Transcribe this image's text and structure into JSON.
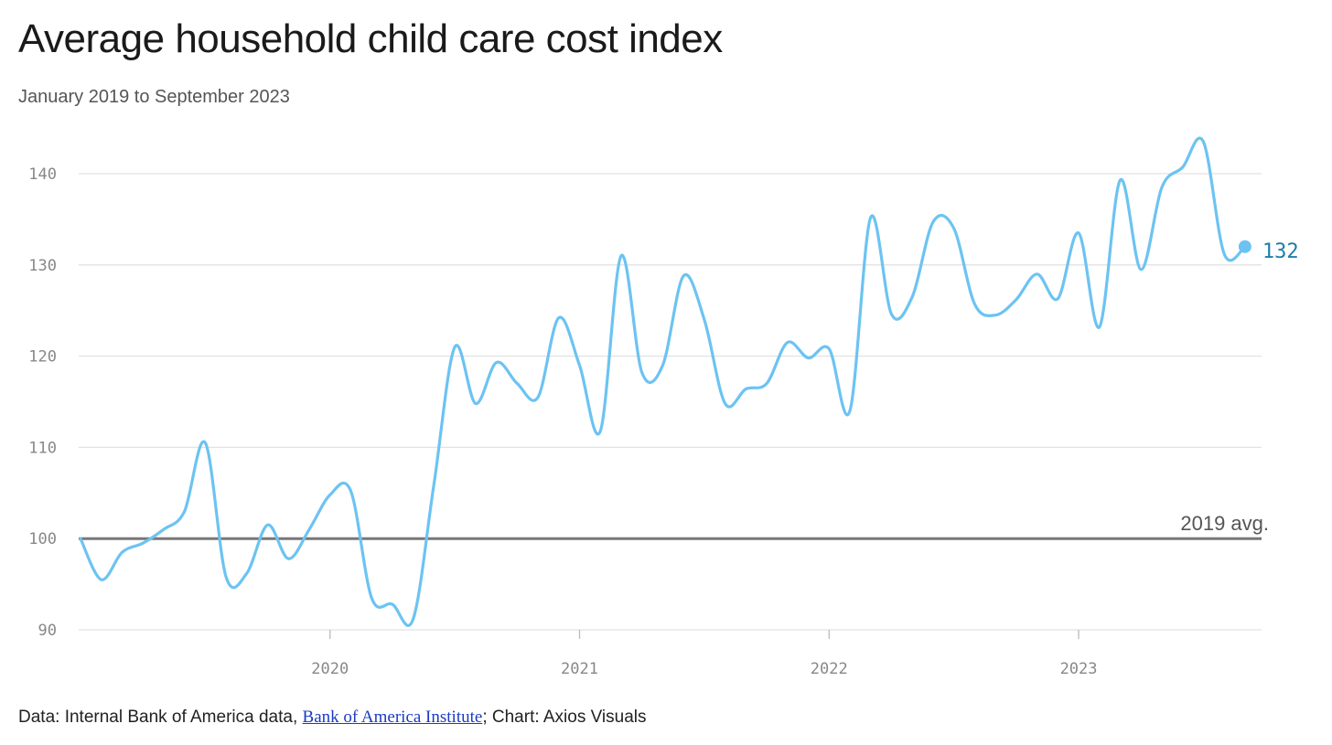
{
  "title": "Average household child care cost index",
  "subtitle": "January 2019 to September 2023",
  "footer": {
    "prefix": "Data: Internal Bank of America data, ",
    "link_text": "Bank of America Institute",
    "suffix": "; Chart: Axios Visuals"
  },
  "colors": {
    "line": "#6cc3f2",
    "end_label": "#1c7fa8",
    "reference": "#777777",
    "grid": "#e2e2e2"
  },
  "chart_data": {
    "type": "line",
    "title": "Average household child care cost index",
    "subtitle": "January 2019 to September 2023",
    "xlabel": "",
    "ylabel": "",
    "ylim": [
      90,
      140
    ],
    "yticks": [
      90,
      100,
      110,
      120,
      130,
      140
    ],
    "xticks": [
      "2020",
      "2021",
      "2022",
      "2023"
    ],
    "grid": true,
    "x_start": "2019-01",
    "x_end": "2023-09",
    "reference_line": {
      "value": 100,
      "label": "2019 avg."
    },
    "end_value_label": "132",
    "series": [
      {
        "values": [
          100,
          95.5,
          98.5,
          99.5,
          101,
          103,
          110.5,
          95.8,
          96.2,
          101.5,
          97.8,
          101,
          104.8,
          105.2,
          93.5,
          92.8,
          91.2,
          106,
          121,
          114.8,
          119.3,
          117,
          115.5,
          124.2,
          119,
          111.8,
          131,
          118.2,
          119,
          128.8,
          124,
          114.8,
          116.4,
          117,
          121.5,
          119.8,
          120.8,
          114,
          135.2,
          124.6,
          126.5,
          134.7,
          134,
          125.7,
          124.5,
          126.2,
          129,
          126.3,
          133.5,
          123.2,
          139.3,
          129.5,
          138.5,
          140.7,
          143.5,
          131.2,
          132
        ]
      }
    ]
  }
}
